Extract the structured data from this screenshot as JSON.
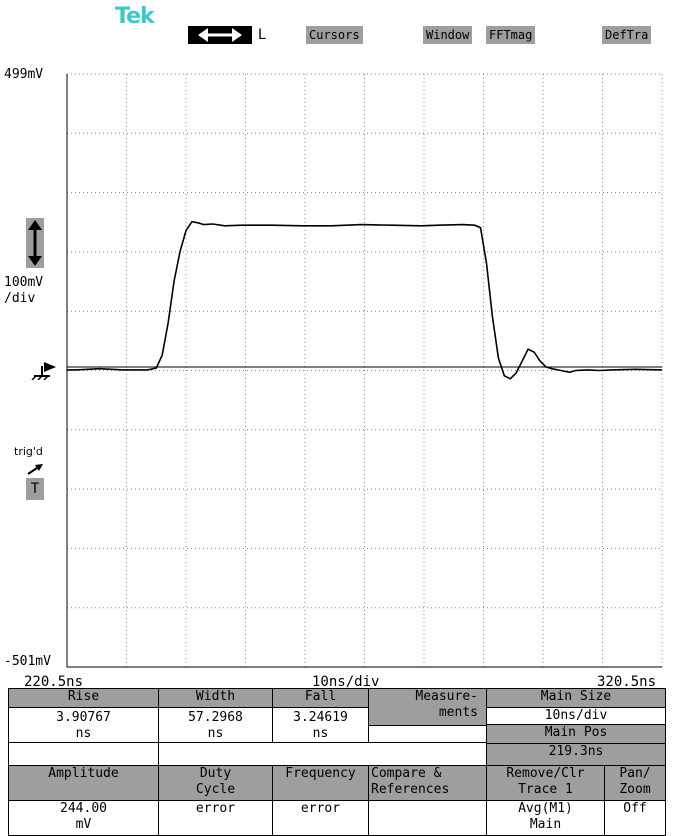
{
  "top_bar": {
    "logo": "Tek",
    "cursor_letter": "L",
    "buttons": [
      "Cursors",
      "Window",
      "FFTmag",
      "DefTra"
    ]
  },
  "scope": {
    "top_voltage": "499mV",
    "bottom_voltage": "-501mV",
    "scale_value": "100mV",
    "scale_unit": "/div",
    "trigger_status": "trig'd",
    "trigger_letter": "T",
    "x_left": "220.5ns",
    "x_center": "10ns/div",
    "x_right": "320.5ns"
  },
  "chart_data": {
    "type": "line",
    "xlabel": "10ns/div",
    "ylabel": "100mV /div",
    "xlim": [
      220.5,
      320.5
    ],
    "ylim": [
      -501,
      499
    ],
    "grid": true,
    "series": [
      {
        "x": [
          220.5,
          222,
          226,
          230,
          234,
          235.5,
          236.5,
          237.5,
          238.5,
          239.5,
          240.5,
          241.5,
          242.5,
          243.5,
          245,
          247,
          250,
          255,
          260,
          265,
          270,
          275,
          280,
          283,
          287,
          289,
          290,
          291,
          292,
          293,
          294,
          295,
          296,
          297,
          298,
          299,
          300,
          301,
          302,
          303,
          304,
          305,
          306,
          308,
          310,
          312,
          316,
          320.5
        ],
        "y": [
          0,
          0,
          2,
          0,
          0,
          3,
          25,
          80,
          150,
          200,
          235,
          250,
          248,
          245,
          246,
          243,
          244,
          244,
          243,
          243,
          245,
          244,
          243,
          244,
          245,
          244,
          240,
          180,
          90,
          20,
          -10,
          -15,
          -5,
          15,
          35,
          30,
          15,
          5,
          2,
          0,
          -2,
          -4,
          -1,
          0,
          -1,
          0,
          1,
          0
        ]
      }
    ]
  },
  "measurements": {
    "rise_label": "Rise",
    "rise_value": "3.90767",
    "rise_unit": "ns",
    "width_label": "Width",
    "width_value": "57.2968",
    "width_unit": "ns",
    "fall_label": "Fall",
    "fall_value": "3.24619",
    "fall_unit": "ns",
    "measurements_line1": "Measure-",
    "measurements_line2": "ments",
    "main_size_label": "Main Size",
    "main_size_value": "10ns/div",
    "main_pos_label": "Main Pos",
    "main_pos_value": "219.3ns",
    "amplitude_label": "Amplitude",
    "amplitude_value": "244.00",
    "amplitude_unit": "mV",
    "duty_line1": "Duty",
    "duty_line2": "Cycle",
    "duty_value": "error",
    "frequency_label": "Frequency",
    "frequency_value": "error",
    "compare_line1": "Compare &",
    "compare_line2": "References",
    "remove_line1": "Remove/Clr",
    "remove_line2": "Trace 1",
    "remove_value1": "Avg(M1)",
    "remove_value2": "Main",
    "panzoom_line1": "Pan/",
    "panzoom_line2": "Zoom",
    "panzoom_value": "Off"
  }
}
